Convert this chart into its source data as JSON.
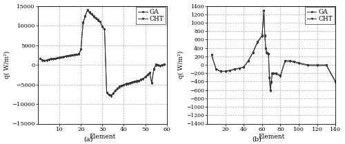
{
  "subplot_a": {
    "title": "(a)",
    "xlabel": "Element",
    "ylabel": "q(’ W/m²)",
    "xlim": [
      0,
      60
    ],
    "ylim": [
      -15000,
      15000
    ],
    "xticks": [
      10,
      20,
      30,
      40,
      50,
      60
    ],
    "yticks": [
      -15000,
      -10000,
      -5000,
      0,
      5000,
      10000,
      15000
    ],
    "ga_x": [
      1,
      2,
      3,
      4,
      5,
      6,
      7,
      8,
      9,
      10,
      11,
      12,
      13,
      14,
      15,
      16,
      17,
      18,
      19,
      20,
      21,
      22,
      23,
      24,
      25,
      26,
      27,
      28,
      29,
      30,
      31,
      32,
      33,
      34,
      35,
      36,
      37,
      38,
      39,
      40,
      41,
      42,
      43,
      44,
      45,
      46,
      47,
      48,
      49,
      50,
      51,
      52,
      53,
      54,
      55,
      56,
      57,
      58,
      59
    ],
    "ga_y": [
      1600,
      1200,
      1100,
      1200,
      1400,
      1500,
      1500,
      1600,
      1800,
      1900,
      2000,
      2100,
      2200,
      2300,
      2400,
      2500,
      2600,
      2700,
      2800,
      4000,
      10800,
      12500,
      14000,
      13500,
      13000,
      12500,
      12000,
      11500,
      11000,
      9800,
      9200,
      -7000,
      -7500,
      -7800,
      -7200,
      -6500,
      -6000,
      -5500,
      -5200,
      -5000,
      -4800,
      -4700,
      -4500,
      -4300,
      -4200,
      -4100,
      -4000,
      -3700,
      -3500,
      -3000,
      -2500,
      -2000,
      -4500,
      -1000,
      100,
      0,
      -200,
      0,
      100
    ],
    "cht_x": [
      1,
      2,
      3,
      4,
      5,
      6,
      7,
      8,
      9,
      10,
      11,
      12,
      13,
      14,
      15,
      16,
      17,
      18,
      19,
      20,
      21,
      22,
      23,
      24,
      25,
      26,
      27,
      28,
      29,
      30,
      31,
      32,
      33,
      34,
      35,
      36,
      37,
      38,
      39,
      40,
      41,
      42,
      43,
      44,
      45,
      46,
      47,
      48,
      49,
      50,
      51,
      52,
      53,
      54,
      55,
      56,
      57,
      58,
      59
    ],
    "cht_y": [
      1500,
      1100,
      1000,
      1100,
      1300,
      1400,
      1400,
      1500,
      1700,
      1800,
      1900,
      2000,
      2100,
      2200,
      2300,
      2400,
      2500,
      2600,
      2700,
      3800,
      10500,
      12300,
      13800,
      13200,
      12800,
      12200,
      11800,
      11200,
      10800,
      9600,
      9000,
      -7200,
      -7700,
      -8000,
      -7400,
      -6700,
      -6200,
      -5700,
      -5400,
      -5200,
      -5000,
      -4900,
      -4700,
      -4500,
      -4400,
      -4300,
      -4200,
      -3900,
      -3700,
      -3200,
      -2700,
      -2200,
      -4700,
      -1200,
      -100,
      -200,
      -300,
      -200,
      0
    ]
  },
  "subplot_b": {
    "title": "(b)",
    "xlabel": "Element",
    "ylabel": "q(’ W/m²)",
    "xlim": [
      0,
      140
    ],
    "ylim": [
      -1400,
      1400
    ],
    "xticks": [
      20,
      40,
      60,
      80,
      100,
      120,
      140
    ],
    "yticks": [
      -1400,
      -1200,
      -1000,
      -800,
      -600,
      -400,
      -200,
      0,
      200,
      400,
      600,
      800,
      1000,
      1200,
      1400
    ],
    "ga_x": [
      5,
      10,
      15,
      20,
      25,
      30,
      35,
      40,
      45,
      50,
      55,
      60,
      62,
      63,
      64,
      65,
      66,
      67,
      68,
      69,
      70,
      71,
      72,
      75,
      80,
      85,
      90,
      95,
      100,
      110,
      120,
      130,
      140
    ],
    "ga_y": [
      250,
      -100,
      -150,
      -150,
      -130,
      -100,
      -80,
      -50,
      100,
      300,
      550,
      700,
      1300,
      700,
      400,
      300,
      280,
      260,
      -300,
      -600,
      -400,
      -200,
      -200,
      -200,
      -250,
      100,
      100,
      80,
      50,
      0,
      0,
      0,
      -400
    ],
    "cht_x": [
      5,
      10,
      15,
      20,
      25,
      30,
      35,
      40,
      45,
      50,
      55,
      60,
      62,
      63,
      64,
      65,
      66,
      67,
      68,
      69,
      70,
      71,
      72,
      75,
      80,
      85,
      90,
      95,
      100,
      110,
      120,
      130,
      140
    ],
    "cht_y": [
      230,
      -110,
      -160,
      -160,
      -140,
      -110,
      -90,
      -60,
      90,
      280,
      530,
      680,
      1280,
      680,
      380,
      280,
      260,
      240,
      -320,
      -620,
      -420,
      -220,
      -220,
      -220,
      -270,
      80,
      80,
      60,
      30,
      -20,
      -20,
      -20,
      -420
    ]
  },
  "line_color": "#333333",
  "marker_style_ga": "s",
  "marker_style_cht": "v",
  "marker_size": 2.0,
  "line_width": 0.7,
  "legend_fontsize": 6.5,
  "tick_fontsize": 6,
  "label_fontsize": 6.5,
  "title_fontsize": 7,
  "grid_color": "#999999",
  "grid_style": "--",
  "grid_alpha": 0.8,
  "background_color": "#ffffff"
}
